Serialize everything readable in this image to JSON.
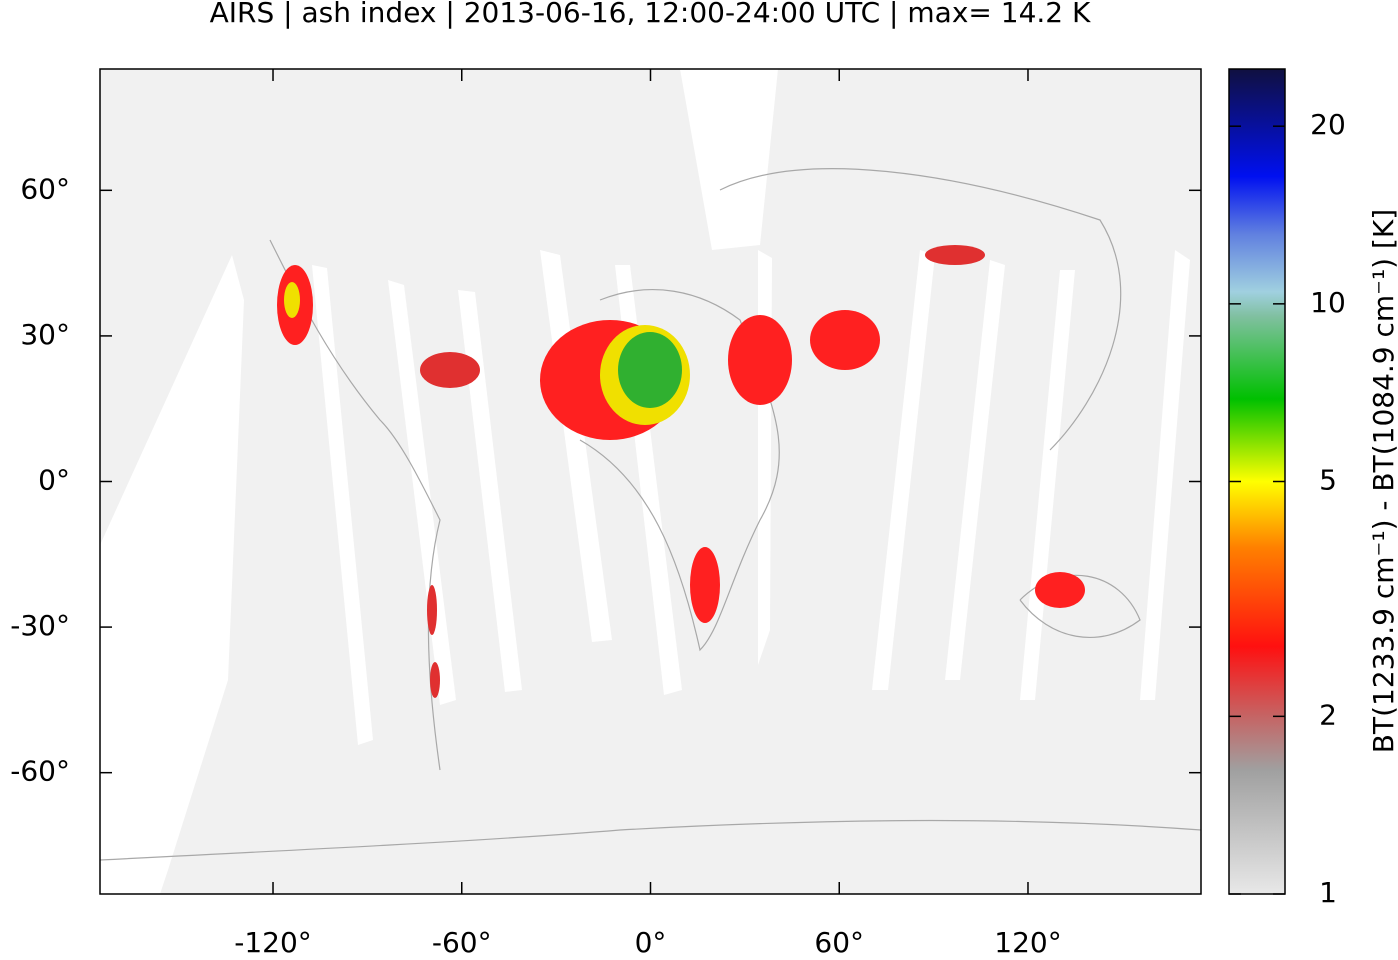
{
  "chart_data": {
    "type": "map",
    "title": "AIRS | ash index | 2013-06-16, 12:00-24:00 UTC | max= 14.2 K",
    "xlim": [
      -175,
      175
    ],
    "ylim": [
      -85,
      85
    ],
    "xticks": [
      {
        "value": -120,
        "label": "-120°"
      },
      {
        "value": -60,
        "label": "-60°"
      },
      {
        "value": 0,
        "label": "0°"
      },
      {
        "value": 60,
        "label": "60°"
      },
      {
        "value": 120,
        "label": "120°"
      }
    ],
    "yticks": [
      {
        "value": -60,
        "label": "-60°"
      },
      {
        "value": -30,
        "label": "-30°"
      },
      {
        "value": 0,
        "label": "0°"
      },
      {
        "value": 30,
        "label": "30°"
      },
      {
        "value": 60,
        "label": "60°"
      }
    ],
    "colorbar": {
      "label": "BT(1233.9 cm⁻¹) - BT(1084.9 cm⁻¹) [K]",
      "lim": [
        1,
        25
      ],
      "ticks": [
        1,
        2,
        5,
        10,
        20
      ],
      "log": true
    }
  }
}
